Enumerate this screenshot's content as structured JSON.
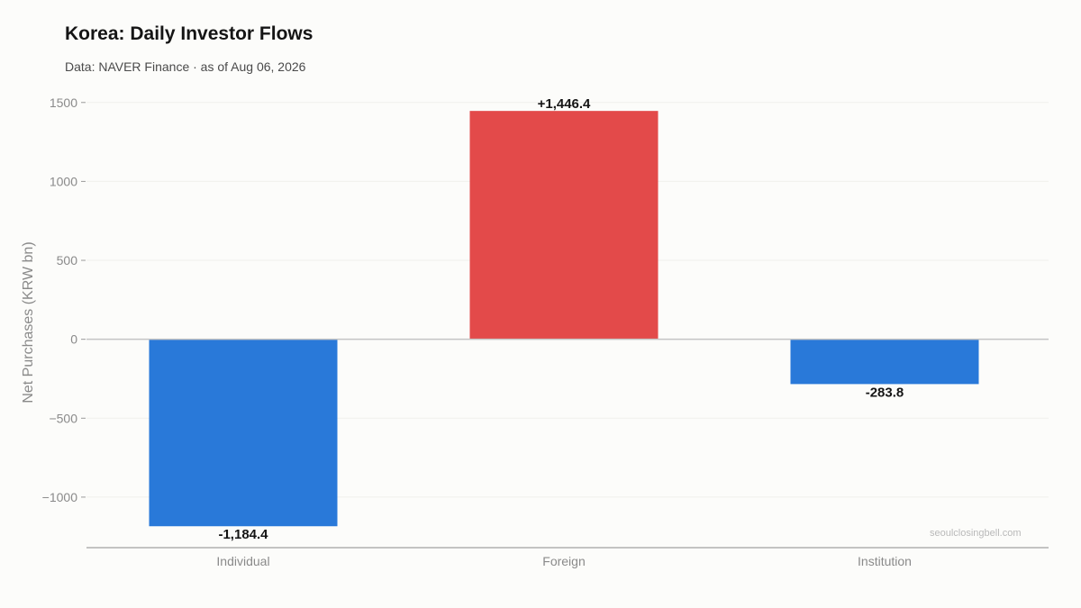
{
  "chart_data": {
    "type": "bar",
    "title": "Korea: Daily Investor Flows",
    "subtitle": "Data: NAVER Finance · as of Aug 06, 2026",
    "ylabel": "Net Purchases (KRW bn)",
    "xlabel": "",
    "categories": [
      "Individual",
      "Foreign",
      "Institution"
    ],
    "values": [
      -1184.4,
      1446.4,
      -283.8
    ],
    "value_labels": [
      "-1,184.4",
      "+1,446.4",
      "-283.8"
    ],
    "bar_colors": [
      "#2979d9",
      "#e34a4a",
      "#2979d9"
    ],
    "yticks": [
      1500,
      1000,
      500,
      0,
      -500,
      -1000
    ],
    "ytick_labels": [
      "1500",
      "1000",
      "500",
      "0",
      "−500",
      "−1000"
    ],
    "ylim": [
      -1320,
      1550
    ],
    "grid": true,
    "legend": "none",
    "watermark": "seoulclosingbell.com"
  }
}
